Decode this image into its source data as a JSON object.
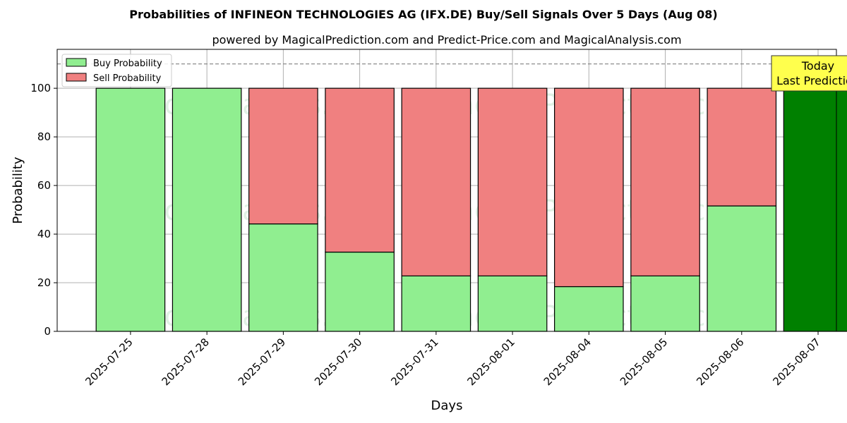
{
  "chart_data": {
    "type": "bar",
    "stacked": true,
    "title": "Probabilities of INFINEON TECHNOLOGIES AG (IFX.DE) Buy/Sell Signals Over 5 Days (Aug 08)",
    "subtitle": "powered by MagicalPrediction.com and Predict-Price.com and MagicalAnalysis.com",
    "xlabel": "Days",
    "ylabel": "Probability",
    "ylim": [
      0,
      116
    ],
    "yticks": [
      0,
      20,
      40,
      60,
      80,
      100
    ],
    "grid": true,
    "legend_position": "top-left",
    "categories": [
      "2025-07-25",
      "2025-07-28",
      "2025-07-29",
      "2025-07-30",
      "2025-07-31",
      "2025-08-01",
      "2025-08-04",
      "2025-08-05",
      "2025-08-06",
      "2025-08-07"
    ],
    "series": [
      {
        "name": "Buy Probability",
        "color": "#90ee90",
        "values": [
          100,
          100,
          44.2,
          32.6,
          22.8,
          22.8,
          18.4,
          22.8,
          51.6,
          100
        ]
      },
      {
        "name": "Sell Probability",
        "color": "#f08080",
        "values": [
          0,
          0,
          55.8,
          67.4,
          77.2,
          77.2,
          81.6,
          77.2,
          48.4,
          0
        ]
      }
    ],
    "highlight": {
      "category": "2025-08-07",
      "color": "#008000"
    },
    "reference_line": {
      "y": 110,
      "style": "dashed"
    },
    "annotation": {
      "lines": [
        "Today",
        "Last Prediction"
      ],
      "background": "#ffff4d"
    },
    "watermarks": [
      "MagicalAnalysis.com",
      "MagicalPrediction.com"
    ]
  }
}
